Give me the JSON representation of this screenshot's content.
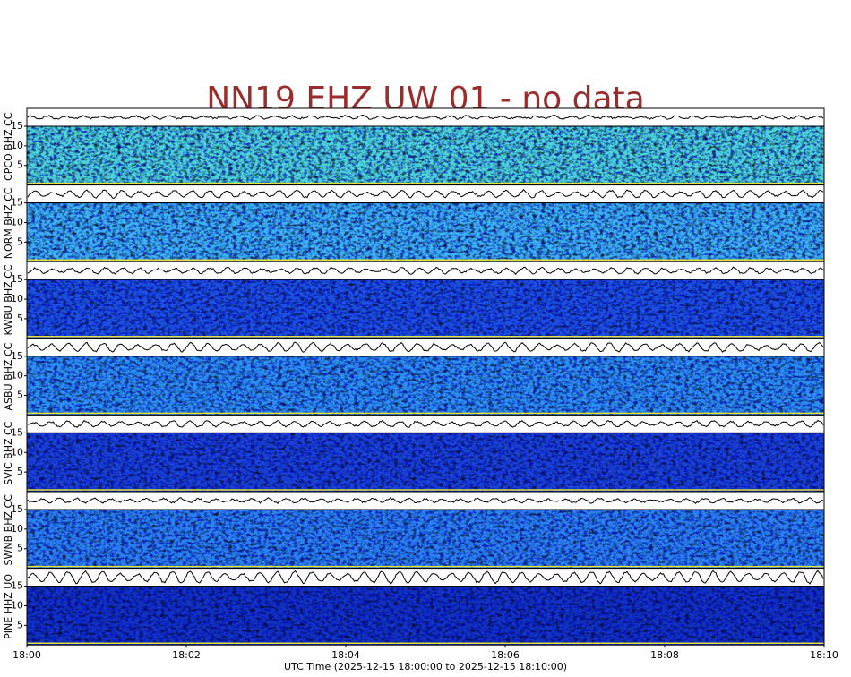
{
  "title": "NN19 EHZ UW 01 - no data",
  "ylim": [
    0,
    15
  ],
  "panels": [
    {
      "label": "CPCO BHZ CC",
      "yticks": [
        5,
        10,
        15
      ]
    },
    {
      "label": "NORM BHZ CC",
      "yticks": [
        5,
        10,
        15
      ]
    },
    {
      "label": "KWBU BHZ CC",
      "yticks": [
        5,
        10,
        15
      ]
    },
    {
      "label": "ASBU BHZ CC",
      "yticks": [
        5,
        10,
        15
      ]
    },
    {
      "label": "SVIC BHZ CC",
      "yticks": [
        5,
        10,
        15
      ]
    },
    {
      "label": "SWNB BHZ CC",
      "yticks": [
        5,
        10,
        15
      ]
    },
    {
      "label": "PINE HHZ UO",
      "yticks": [
        5,
        10,
        15
      ]
    }
  ],
  "xticks": [
    "18:00",
    "18:02",
    "18:04",
    "18:06",
    "18:08",
    "18:10"
  ],
  "xlabel": "UTC Time (2025-12-15 18:00:00 to 2025-12-15 18:10:00)"
}
